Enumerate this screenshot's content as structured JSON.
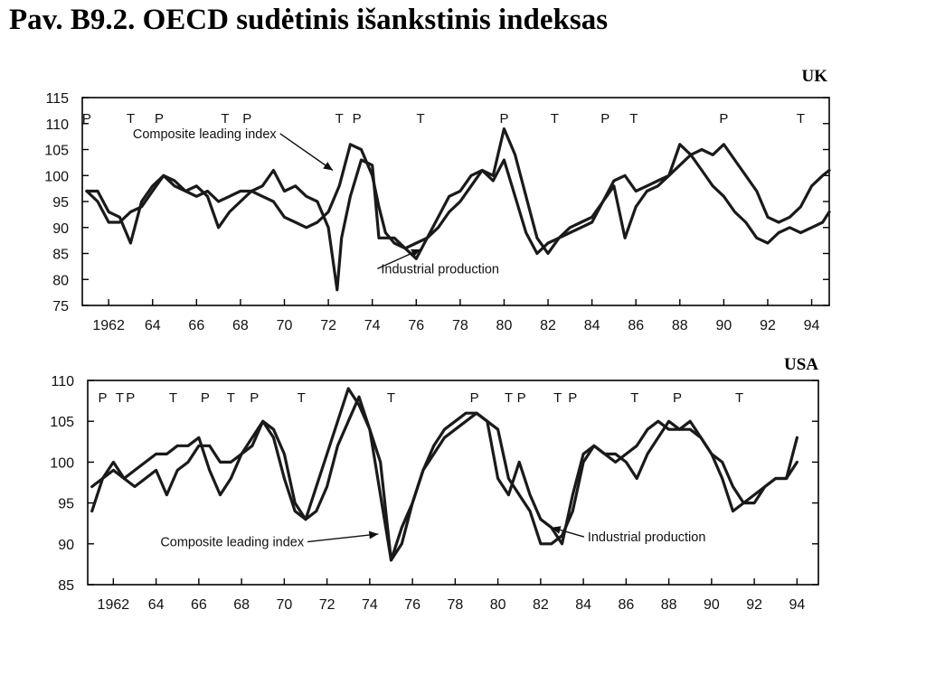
{
  "title": "Pav. B9.2. OECD sudėtinis išankstinis indeksas",
  "chart_data": [
    {
      "type": "line",
      "panel_label": "UK",
      "x_ticks": [
        {
          "value": 1962,
          "label": "1962"
        },
        {
          "value": 1964,
          "label": "64"
        },
        {
          "value": 1966,
          "label": "66"
        },
        {
          "value": 1968,
          "label": "68"
        },
        {
          "value": 1970,
          "label": "70"
        },
        {
          "value": 1972,
          "label": "72"
        },
        {
          "value": 1974,
          "label": "74"
        },
        {
          "value": 1976,
          "label": "76"
        },
        {
          "value": 1978,
          "label": "78"
        },
        {
          "value": 1980,
          "label": "80"
        },
        {
          "value": 1982,
          "label": "82"
        },
        {
          "value": 1984,
          "label": "84"
        },
        {
          "value": 1986,
          "label": "86"
        },
        {
          "value": 1988,
          "label": "88"
        },
        {
          "value": 1990,
          "label": "90"
        },
        {
          "value": 1992,
          "label": "92"
        },
        {
          "value": 1994,
          "label": "94"
        }
      ],
      "y_ticks": [
        75,
        80,
        85,
        90,
        95,
        100,
        105,
        110,
        115
      ],
      "xlim": [
        1960.8,
        1994.8
      ],
      "ylim": [
        75,
        115
      ],
      "grid": false,
      "turning_points": [
        {
          "label": "P",
          "x": 1961.0
        },
        {
          "label": "T",
          "x": 1963.0
        },
        {
          "label": "P",
          "x": 1964.3
        },
        {
          "label": "T",
          "x": 1967.3
        },
        {
          "label": "P",
          "x": 1968.3
        },
        {
          "label": "T",
          "x": 1972.5
        },
        {
          "label": "P",
          "x": 1973.3
        },
        {
          "label": "T",
          "x": 1976.2
        },
        {
          "label": "P",
          "x": 1980.0
        },
        {
          "label": "T",
          "x": 1982.3
        },
        {
          "label": "P",
          "x": 1984.6
        },
        {
          "label": "T",
          "x": 1985.9
        },
        {
          "label": "P",
          "x": 1990.0
        },
        {
          "label": "T",
          "x": 1993.5
        }
      ],
      "series": [
        {
          "name": "Composite leading index",
          "x": [
            1961.0,
            1961.5,
            1962.0,
            1962.5,
            1963.0,
            1963.5,
            1964.0,
            1964.5,
            1965.0,
            1965.5,
            1966.0,
            1966.5,
            1967.0,
            1967.5,
            1968.0,
            1968.5,
            1969.0,
            1969.5,
            1970.0,
            1970.5,
            1971.0,
            1971.5,
            1972.0,
            1972.5,
            1973.0,
            1973.5,
            1974.0,
            1974.3,
            1974.6,
            1975.0,
            1975.5,
            1976.0,
            1976.5,
            1977.0,
            1977.5,
            1978.0,
            1978.5,
            1979.0,
            1979.5,
            1980.0,
            1980.5,
            1981.0,
            1981.5,
            1982.0,
            1982.5,
            1983.0,
            1983.5,
            1984.0,
            1984.5,
            1985.0,
            1985.5,
            1986.0,
            1986.5,
            1987.0,
            1987.5,
            1988.0,
            1988.5,
            1989.0,
            1989.5,
            1990.0,
            1990.5,
            1991.0,
            1991.5,
            1992.0,
            1992.5,
            1993.0,
            1993.5,
            1994.0,
            1994.5,
            1994.8
          ],
          "values": [
            97,
            95,
            91,
            91,
            93,
            94,
            97,
            100,
            98,
            97,
            96,
            97,
            95,
            96,
            97,
            97,
            96,
            95,
            92,
            91,
            90,
            91,
            93,
            98,
            106,
            105,
            100,
            94,
            89,
            87,
            86,
            87,
            88,
            90,
            93,
            95,
            98,
            101,
            100,
            109,
            104,
            96,
            88,
            85,
            88,
            90,
            91,
            92,
            95,
            99,
            100,
            97,
            98,
            99,
            100,
            106,
            104,
            101,
            98,
            96,
            93,
            91,
            88,
            87,
            89,
            90,
            89,
            90,
            91,
            93
          ]
        },
        {
          "name": "Industrial production",
          "x": [
            1961.0,
            1961.5,
            1962.0,
            1962.5,
            1963.0,
            1963.5,
            1964.0,
            1964.5,
            1965.0,
            1965.5,
            1966.0,
            1966.5,
            1967.0,
            1967.5,
            1968.0,
            1968.5,
            1969.0,
            1969.5,
            1970.0,
            1970.5,
            1971.0,
            1971.5,
            1972.0,
            1972.4,
            1972.6,
            1973.0,
            1973.5,
            1974.0,
            1974.3,
            1974.6,
            1975.0,
            1975.5,
            1976.0,
            1976.5,
            1977.0,
            1977.5,
            1978.0,
            1978.5,
            1979.0,
            1979.5,
            1980.0,
            1980.5,
            1981.0,
            1981.5,
            1982.0,
            1982.5,
            1983.0,
            1983.5,
            1984.0,
            1984.5,
            1985.0,
            1985.5,
            1986.0,
            1986.5,
            1987.0,
            1987.5,
            1988.0,
            1988.5,
            1989.0,
            1989.5,
            1990.0,
            1990.5,
            1991.0,
            1991.5,
            1992.0,
            1992.5,
            1993.0,
            1993.5,
            1994.0,
            1994.5,
            1994.8
          ],
          "values": [
            97,
            97,
            93,
            92,
            87,
            95,
            98,
            100,
            99,
            97,
            98,
            96,
            90,
            93,
            95,
            97,
            98,
            101,
            97,
            98,
            96,
            95,
            90,
            78,
            88,
            96,
            103,
            102,
            88,
            88,
            88,
            86,
            84,
            88,
            92,
            96,
            97,
            100,
            101,
            99,
            103,
            96,
            89,
            85,
            87,
            88,
            89,
            90,
            91,
            95,
            98,
            88,
            94,
            97,
            98,
            100,
            102,
            104,
            105,
            104,
            106,
            103,
            100,
            97,
            92,
            91,
            92,
            94,
            98,
            100,
            101
          ]
        }
      ],
      "annotations": [
        {
          "text": "Composite leading index",
          "x": 1963.1,
          "y": 107.2,
          "arrow_to": {
            "x": 1972.2,
            "y": 101.0
          }
        },
        {
          "text": "Industrial production",
          "x": 1974.4,
          "y": 81.2,
          "arrow_to": {
            "x": 1976.2,
            "y": 85.8
          }
        }
      ]
    },
    {
      "type": "line",
      "panel_label": "USA",
      "x_ticks": [
        {
          "value": 1962,
          "label": "1962"
        },
        {
          "value": 1964,
          "label": "64"
        },
        {
          "value": 1966,
          "label": "66"
        },
        {
          "value": 1968,
          "label": "68"
        },
        {
          "value": 1970,
          "label": "70"
        },
        {
          "value": 1972,
          "label": "72"
        },
        {
          "value": 1974,
          "label": "74"
        },
        {
          "value": 1976,
          "label": "76"
        },
        {
          "value": 1978,
          "label": "78"
        },
        {
          "value": 1980,
          "label": "80"
        },
        {
          "value": 1982,
          "label": "82"
        },
        {
          "value": 1984,
          "label": "84"
        },
        {
          "value": 1986,
          "label": "86"
        },
        {
          "value": 1988,
          "label": "88"
        },
        {
          "value": 1990,
          "label": "90"
        },
        {
          "value": 1992,
          "label": "92"
        },
        {
          "value": 1994,
          "label": "94"
        }
      ],
      "y_ticks": [
        85,
        90,
        95,
        100,
        105,
        110
      ],
      "xlim": [
        1960.8,
        1995.0
      ],
      "ylim": [
        85,
        110
      ],
      "grid": false,
      "turning_points": [
        {
          "label": "P",
          "x": 1961.5
        },
        {
          "label": "T",
          "x": 1962.3
        },
        {
          "label": "P",
          "x": 1962.8
        },
        {
          "label": "T",
          "x": 1964.8
        },
        {
          "label": "P",
          "x": 1966.3
        },
        {
          "label": "T",
          "x": 1967.5
        },
        {
          "label": "P",
          "x": 1968.6
        },
        {
          "label": "T",
          "x": 1970.8
        },
        {
          "label": "T",
          "x": 1975.0
        },
        {
          "label": "P",
          "x": 1978.9
        },
        {
          "label": "T",
          "x": 1980.5
        },
        {
          "label": "P",
          "x": 1981.1
        },
        {
          "label": "T",
          "x": 1982.8
        },
        {
          "label": "P",
          "x": 1983.5
        },
        {
          "label": "T",
          "x": 1986.4
        },
        {
          "label": "P",
          "x": 1988.4
        },
        {
          "label": "T",
          "x": 1991.3
        }
      ],
      "series": [
        {
          "name": "Composite leading index",
          "x": [
            1961.0,
            1961.5,
            1962.0,
            1962.5,
            1963.0,
            1963.5,
            1964.0,
            1964.5,
            1965.0,
            1965.5,
            1966.0,
            1966.5,
            1967.0,
            1967.5,
            1968.0,
            1968.5,
            1969.0,
            1969.5,
            1970.0,
            1970.5,
            1971.0,
            1971.5,
            1972.0,
            1972.5,
            1973.0,
            1973.5,
            1974.0,
            1974.5,
            1975.0,
            1975.5,
            1976.0,
            1976.5,
            1977.0,
            1977.5,
            1978.0,
            1978.5,
            1979.0,
            1979.5,
            1980.0,
            1980.5,
            1981.0,
            1981.5,
            1982.0,
            1982.5,
            1983.0,
            1983.5,
            1984.0,
            1984.5,
            1985.0,
            1985.5,
            1986.0,
            1986.5,
            1987.0,
            1987.5,
            1988.0,
            1988.5,
            1989.0,
            1989.5,
            1990.0,
            1990.5,
            1991.0,
            1991.5,
            1992.0,
            1992.5,
            1993.0,
            1993.5,
            1994.0
          ],
          "values": [
            94,
            98,
            100,
            98,
            99,
            100,
            101,
            101,
            102,
            102,
            103,
            99,
            96,
            98,
            101,
            103,
            105,
            103,
            98,
            94,
            93,
            97,
            101,
            105,
            109,
            107,
            104,
            96,
            88,
            90,
            95,
            99,
            102,
            104,
            105,
            106,
            106,
            105,
            104,
            98,
            96,
            94,
            90,
            90,
            91,
            94,
            100,
            102,
            101,
            100,
            101,
            102,
            104,
            105,
            104,
            104,
            105,
            103,
            101,
            100,
            97,
            95,
            95,
            97,
            98,
            98,
            103
          ]
        },
        {
          "name": "Industrial production",
          "x": [
            1961.0,
            1961.5,
            1962.0,
            1962.5,
            1963.0,
            1963.5,
            1964.0,
            1964.5,
            1965.0,
            1965.5,
            1966.0,
            1966.5,
            1967.0,
            1967.5,
            1968.0,
            1968.5,
            1969.0,
            1969.5,
            1970.0,
            1970.5,
            1971.0,
            1971.5,
            1972.0,
            1972.5,
            1973.0,
            1973.5,
            1974.0,
            1974.5,
            1975.0,
            1975.5,
            1976.0,
            1976.5,
            1977.0,
            1977.5,
            1978.0,
            1978.5,
            1979.0,
            1979.5,
            1980.0,
            1980.5,
            1981.0,
            1981.5,
            1982.0,
            1982.5,
            1983.0,
            1983.5,
            1984.0,
            1984.5,
            1985.0,
            1985.5,
            1986.0,
            1986.5,
            1987.0,
            1987.5,
            1988.0,
            1988.5,
            1989.0,
            1989.5,
            1990.0,
            1990.5,
            1991.0,
            1991.5,
            1992.0,
            1992.5,
            1993.0,
            1993.5,
            1994.0
          ],
          "values": [
            97,
            98,
            99,
            98,
            97,
            98,
            99,
            96,
            99,
            100,
            102,
            102,
            100,
            100,
            101,
            102,
            105,
            104,
            101,
            95,
            93,
            94,
            97,
            102,
            105,
            108,
            104,
            100,
            88,
            92,
            95,
            99,
            101,
            103,
            104,
            105,
            106,
            105,
            98,
            96,
            100,
            96,
            93,
            92,
            90,
            96,
            101,
            102,
            101,
            101,
            100,
            98,
            101,
            103,
            105,
            104,
            104,
            103,
            101,
            98,
            94,
            95,
            96,
            97,
            98,
            98,
            100
          ]
        }
      ],
      "annotations": [
        {
          "text": "Composite leading index",
          "x": 1964.2,
          "y": 89.7,
          "arrow_to": {
            "x": 1974.4,
            "y": 91.2
          }
        },
        {
          "text": "Industrial production",
          "x": 1984.2,
          "y": 90.3,
          "arrow_to": {
            "x": 1982.5,
            "y": 92.0
          }
        }
      ]
    }
  ]
}
